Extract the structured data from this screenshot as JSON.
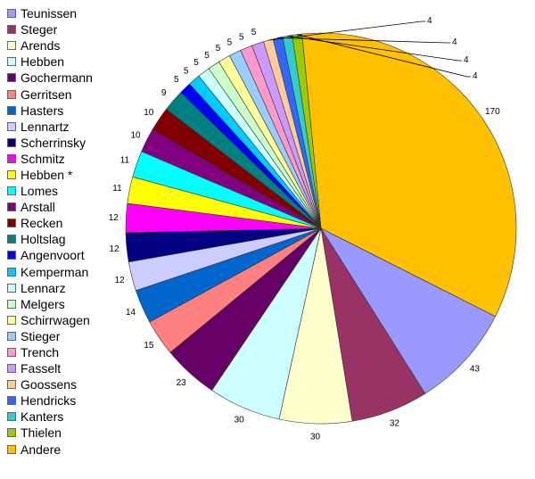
{
  "chart_data": {
    "type": "pie",
    "title": "",
    "start_angle_deg": -95.6,
    "slices": [
      {
        "name": "Andere",
        "value": 170,
        "color": "#FFC000"
      },
      {
        "name": "Teunissen",
        "value": 43,
        "color": "#9999FF"
      },
      {
        "name": "Steger",
        "value": 32,
        "color": "#993366"
      },
      {
        "name": "Arends",
        "value": 30,
        "color": "#FFFFCC"
      },
      {
        "name": "Hebben",
        "value": 30,
        "color": "#CCFFFF"
      },
      {
        "name": "Gochermann",
        "value": 23,
        "color": "#660066"
      },
      {
        "name": "Gerritsen",
        "value": 15,
        "color": "#FF8080"
      },
      {
        "name": "Hasters",
        "value": 14,
        "color": "#0066CC"
      },
      {
        "name": "Lennartz",
        "value": 12,
        "color": "#CCCCFF"
      },
      {
        "name": "Scherrinsky",
        "value": 12,
        "color": "#000080"
      },
      {
        "name": "Schmitz",
        "value": 12,
        "color": "#FF00FF"
      },
      {
        "name": "Hebben *",
        "value": 11,
        "color": "#FFFF00"
      },
      {
        "name": "Lomes",
        "value": 11,
        "color": "#00FFFF"
      },
      {
        "name": "Arstall",
        "value": 10,
        "color": "#800080"
      },
      {
        "name": "Recken",
        "value": 10,
        "color": "#800000"
      },
      {
        "name": "Holtslag",
        "value": 9,
        "color": "#008080"
      },
      {
        "name": "Angenvoort",
        "value": 5,
        "color": "#0000FF"
      },
      {
        "name": "Kemperman",
        "value": 5,
        "color": "#00CCFF"
      },
      {
        "name": "Lennarz",
        "value": 5,
        "color": "#CCFFFF"
      },
      {
        "name": "Melgers",
        "value": 5,
        "color": "#CCFFCC"
      },
      {
        "name": "Schirrwagen",
        "value": 5,
        "color": "#FFFF99"
      },
      {
        "name": "Stieger",
        "value": 5,
        "color": "#99CCFF"
      },
      {
        "name": "Trench",
        "value": 5,
        "color": "#FF99CC"
      },
      {
        "name": "Fasselt",
        "value": 5,
        "color": "#CC99FF"
      },
      {
        "name": "Goossens",
        "value": 4,
        "color": "#FFCC99"
      },
      {
        "name": "Hendricks",
        "value": 4,
        "color": "#3366FF"
      },
      {
        "name": "Kanters",
        "value": 4,
        "color": "#33CCCC"
      },
      {
        "name": "Thielen",
        "value": 4,
        "color": "#99CC00"
      }
    ],
    "legend_order": [
      "Teunissen",
      "Steger",
      "Arends",
      "Hebben",
      "Gochermann",
      "Gerritsen",
      "Hasters",
      "Lennartz",
      "Scherrinsky",
      "Schmitz",
      "Hebben *",
      "Lomes",
      "Arstall",
      "Recken",
      "Holtslag",
      "Angenvoort",
      "Kemperman",
      "Lennarz",
      "Melgers",
      "Schirrwagen",
      "Stieger",
      "Trench",
      "Fasselt",
      "Goossens",
      "Hendricks",
      "Kanters",
      "Thielen",
      "Andere"
    ],
    "legend_position": "left",
    "leader_lines_for_small_slices": true
  }
}
